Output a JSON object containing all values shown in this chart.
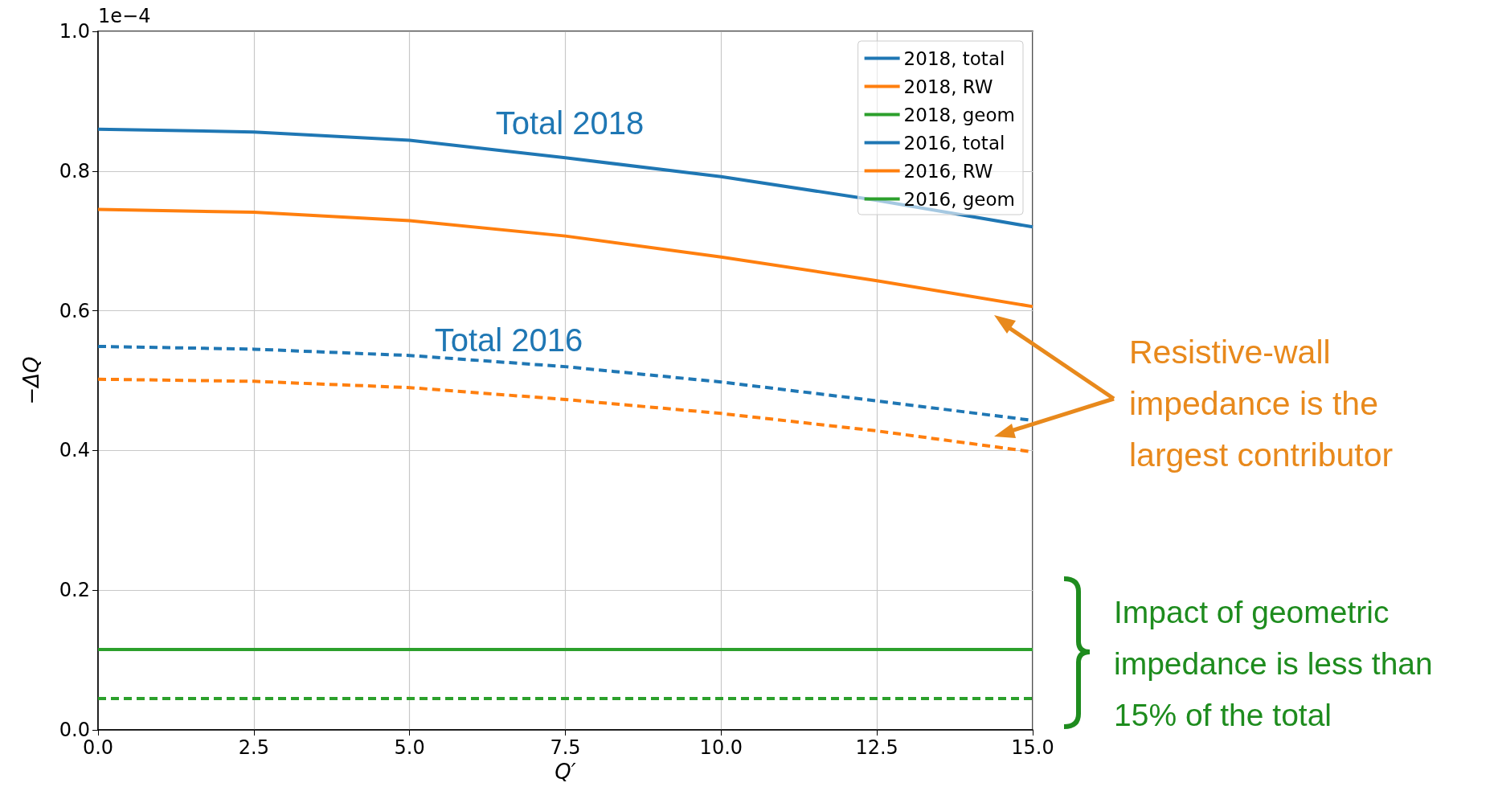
{
  "chart_data": {
    "type": "line",
    "xlabel": "Q′",
    "ylabel": "−ΔQ",
    "x": [
      0,
      2.5,
      5,
      7.5,
      10,
      12.5,
      15
    ],
    "series": [
      {
        "name": "2018, total",
        "color": "#1f77b4",
        "line_style": "solid",
        "values": [
          0.86,
          0.856,
          0.844,
          0.819,
          0.792,
          0.758,
          0.72
        ]
      },
      {
        "name": "2018, RW",
        "color": "#ff7f0e",
        "line_style": "solid",
        "values": [
          0.745,
          0.741,
          0.729,
          0.707,
          0.677,
          0.643,
          0.606
        ]
      },
      {
        "name": "2018, geom",
        "color": "#2ca02c",
        "line_style": "solid",
        "values": [
          0.115,
          0.115,
          0.115,
          0.115,
          0.115,
          0.115,
          0.115
        ]
      },
      {
        "name": "2016, total",
        "color": "#1f77b4",
        "line_style": "dashed",
        "values": [
          0.549,
          0.545,
          0.536,
          0.52,
          0.498,
          0.471,
          0.443
        ]
      },
      {
        "name": "2016, RW",
        "color": "#ff7f0e",
        "line_style": "dashed",
        "values": [
          0.502,
          0.499,
          0.49,
          0.473,
          0.453,
          0.428,
          0.398
        ]
      },
      {
        "name": "2016, geom",
        "color": "#2ca02c",
        "line_style": "dashed",
        "values": [
          0.045,
          0.045,
          0.045,
          0.045,
          0.045,
          0.045,
          0.045
        ]
      }
    ],
    "xlim": [
      0,
      15
    ],
    "xticks": [
      {
        "value": 0,
        "label": "0.0"
      },
      2.5,
      {
        "value": 5,
        "label": "5.0"
      },
      7.5,
      {
        "value": 10,
        "label": "10.0"
      },
      12.5,
      {
        "value": 15,
        "label": "15.0"
      }
    ],
    "ylim": [
      0,
      1
    ],
    "yticks": [
      {
        "value": 0,
        "label": "0.0"
      },
      0.2,
      0.4,
      0.6,
      0.8,
      {
        "value": 1,
        "label": "1.0"
      }
    ],
    "grid": true,
    "legend": "top right",
    "marker": "none",
    "annotations": [
      "1e−4",
      "Total 2018",
      "Total 2016",
      "Resistive-wall impedance is the largest contributor",
      "Impact of geometric impedance is less than 15% of the total"
    ]
  }
}
